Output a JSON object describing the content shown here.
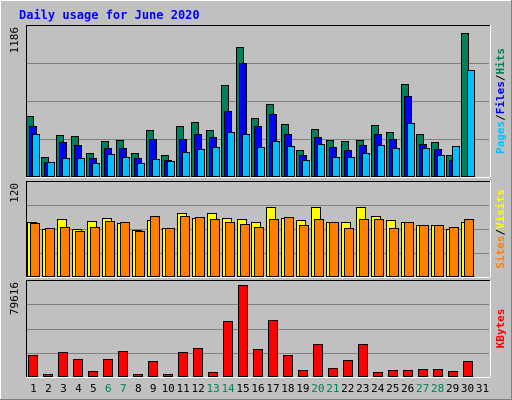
{
  "chart_data": {
    "type": "bar",
    "title": "Daily usage for June 2020",
    "categories": [
      "1",
      "2",
      "3",
      "4",
      "5",
      "6",
      "7",
      "8",
      "9",
      "10",
      "11",
      "12",
      "13",
      "14",
      "15",
      "16",
      "17",
      "18",
      "19",
      "20",
      "21",
      "22",
      "23",
      "24",
      "25",
      "26",
      "27",
      "28",
      "29",
      "30",
      "31"
    ],
    "weekend_days": [
      "6",
      "7",
      "13",
      "14",
      "20",
      "21",
      "27",
      "28"
    ],
    "panels": [
      {
        "ymax": 1186,
        "ymax_label": "1186",
        "legend": [
          "Pages",
          "Files",
          "Hits"
        ],
        "series": [
          {
            "name": "Hits",
            "color": "#00805c",
            "values": [
              490,
              160,
              340,
              330,
              190,
              290,
              300,
              190,
              380,
              180,
              410,
              440,
              380,
              740,
              1045,
              480,
              590,
              430,
              215,
              390,
              300,
              290,
              300,
              420,
              365,
              750,
              350,
              285,
              180,
              1160,
              0
            ]
          },
          {
            "name": "Files",
            "color": "#0000ff",
            "values": [
              410,
              120,
              280,
              260,
              150,
              230,
              230,
              150,
              310,
              140,
              310,
              350,
              320,
              530,
              920,
              410,
              510,
              345,
              175,
              320,
              240,
              220,
              260,
              350,
              310,
              650,
              270,
              225,
              140,
              0,
              0
            ]
          },
          {
            "name": "Pages",
            "color": "#00c0ff",
            "values": [
              350,
              125,
              155,
              155,
              110,
              185,
              160,
              110,
              145,
              130,
              200,
              225,
              240,
              365,
              350,
              240,
              290,
              250,
              135,
              265,
              165,
              165,
              195,
              255,
              230,
              435,
              230,
              175,
              250,
              860,
              0
            ]
          }
        ]
      },
      {
        "ymax": 120,
        "ymax_label": "120",
        "legend": [
          "Sites",
          "Visits"
        ],
        "series": [
          {
            "name": "Visits",
            "color": "#ffff00",
            "values": [
              73,
              63,
              77,
              63,
              74,
              78,
              71,
              62,
              75,
              64,
              84,
              78,
              84,
              78,
              77,
              73,
              92,
              78,
              75,
              92,
              72,
              72,
              92,
              81,
              75,
              72,
              69,
              68,
              63,
              73,
              0
            ]
          },
          {
            "name": "Sites",
            "color": "#ff8000",
            "values": [
              71,
              65,
              66,
              60,
              66,
              74,
              72,
              60,
              80,
              65,
              80,
              79,
              77,
              72,
              70,
              66,
              76,
              79,
              69,
              76,
              72,
              65,
              76,
              76,
              64,
              72,
              68,
              68,
              66,
              77,
              0
            ]
          }
        ]
      },
      {
        "ymax": 79616,
        "ymax_label": "79616",
        "legend": [
          "KBytes"
        ],
        "series": [
          {
            "name": "KBytes",
            "color": "#ff0000",
            "values": [
              18800,
              2600,
              21600,
              15300,
              5400,
              15600,
              22800,
              2800,
              14200,
              2600,
              21600,
              25000,
              4300,
              48600,
              79616,
              24200,
              49200,
              19200,
              6300,
              28600,
              7700,
              14400,
              28600,
              4300,
              6100,
              6000,
              6800,
              6700,
              5500,
              14200,
              0
            ]
          }
        ]
      }
    ],
    "grid": true
  },
  "colors": {
    "background": "#c0c0c0",
    "frame": "#ffffff",
    "title": "#0000ff",
    "axis_text": "#000000",
    "weekend_text": "#00805c",
    "gridline": "#808080"
  }
}
